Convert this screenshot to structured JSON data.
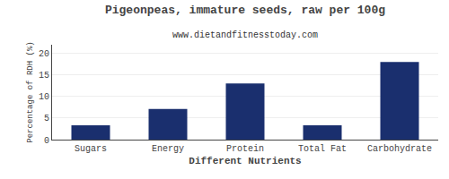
{
  "chart_data": {
    "type": "bar",
    "title": "Pigeonpeas, immature seeds, raw per 100g",
    "subtitle": "www.dietandfitnesstoday.com",
    "xlabel": "Different Nutrients",
    "ylabel": "Percentage of RDH (%)",
    "categories": [
      "Sugars",
      "Energy",
      "Protein",
      "Total Fat",
      "Carbohydrate"
    ],
    "values": [
      3.3,
      7.1,
      13.0,
      3.3,
      18.0
    ],
    "color": "#1a2f6e",
    "ylim": [
      0,
      22
    ],
    "yticks": [
      0,
      5,
      10,
      15,
      20
    ],
    "grid": true
  }
}
